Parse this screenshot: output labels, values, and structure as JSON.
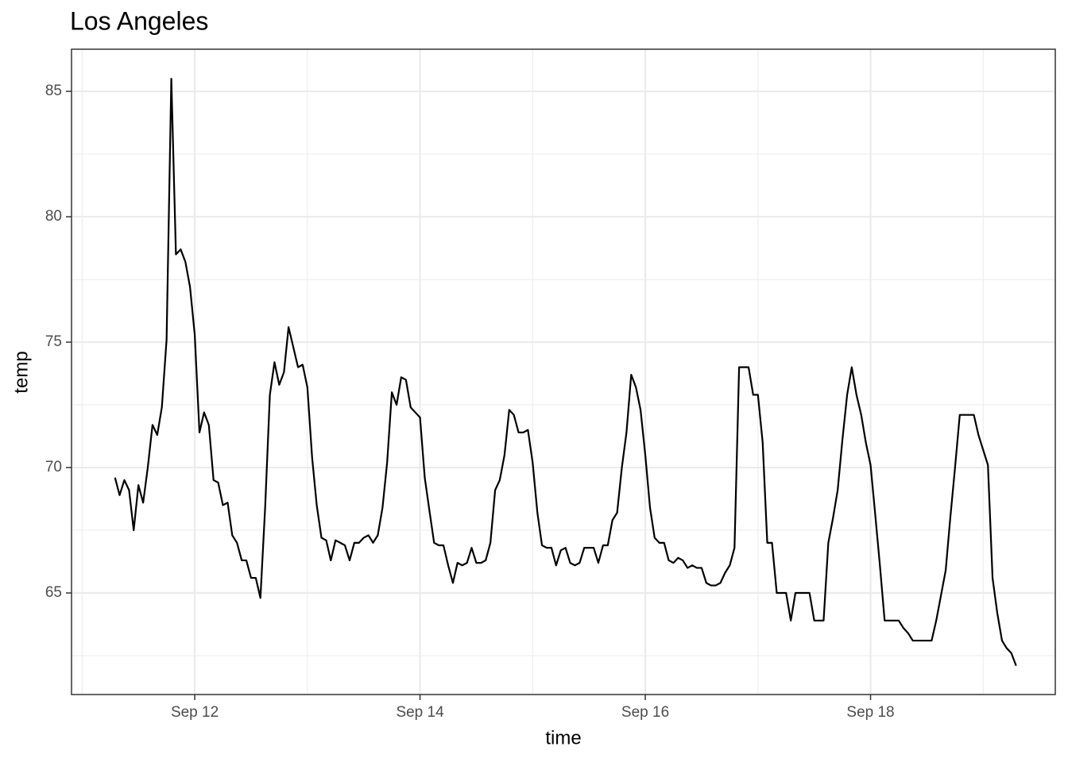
{
  "chart_data": {
    "type": "line",
    "title": "Los Angeles",
    "xlabel": "time",
    "ylabel": "temp",
    "color": "#000000",
    "grid": true,
    "xlim": [
      10.906,
      19.64
    ],
    "ylim": [
      60.95,
      86.68
    ],
    "xticks": [
      {
        "value": 12,
        "label": "Sep 12"
      },
      {
        "value": 14,
        "label": "Sep 14"
      },
      {
        "value": 16,
        "label": "Sep 16"
      },
      {
        "value": 18,
        "label": "Sep 18"
      }
    ],
    "yticks": [
      65,
      70,
      75,
      80,
      85
    ],
    "xminor": [
      11,
      13,
      15,
      17,
      19
    ],
    "yminor": [
      62.5,
      67.5,
      72.5,
      77.5,
      82.5
    ],
    "x": [
      11.292,
      11.333,
      11.375,
      11.417,
      11.458,
      11.5,
      11.542,
      11.583,
      11.625,
      11.667,
      11.708,
      11.75,
      11.792,
      11.833,
      11.875,
      11.917,
      11.958,
      12,
      12.042,
      12.083,
      12.125,
      12.167,
      12.208,
      12.25,
      12.292,
      12.333,
      12.375,
      12.417,
      12.458,
      12.5,
      12.542,
      12.583,
      12.625,
      12.667,
      12.708,
      12.75,
      12.792,
      12.833,
      12.875,
      12.917,
      12.958,
      13,
      13.042,
      13.083,
      13.125,
      13.167,
      13.208,
      13.25,
      13.292,
      13.333,
      13.375,
      13.417,
      13.458,
      13.5,
      13.542,
      13.583,
      13.625,
      13.667,
      13.708,
      13.75,
      13.792,
      13.833,
      13.875,
      13.917,
      13.958,
      14,
      14.042,
      14.083,
      14.125,
      14.167,
      14.208,
      14.25,
      14.292,
      14.333,
      14.375,
      14.417,
      14.458,
      14.5,
      14.542,
      14.583,
      14.625,
      14.667,
      14.708,
      14.75,
      14.792,
      14.833,
      14.875,
      14.917,
      14.958,
      15,
      15.042,
      15.083,
      15.125,
      15.167,
      15.208,
      15.25,
      15.292,
      15.333,
      15.375,
      15.417,
      15.458,
      15.5,
      15.542,
      15.583,
      15.625,
      15.667,
      15.708,
      15.75,
      15.792,
      15.833,
      15.875,
      15.917,
      15.958,
      16,
      16.042,
      16.083,
      16.125,
      16.167,
      16.208,
      16.25,
      16.292,
      16.333,
      16.375,
      16.417,
      16.458,
      16.5,
      16.542,
      16.583,
      16.625,
      16.667,
      16.708,
      16.75,
      16.792,
      16.833,
      16.875,
      16.917,
      16.958,
      17,
      17.042,
      17.083,
      17.125,
      17.167,
      17.208,
      17.25,
      17.292,
      17.333,
      17.375,
      17.417,
      17.458,
      17.5,
      17.542,
      17.583,
      17.625,
      17.667,
      17.708,
      17.75,
      17.792,
      17.833,
      17.875,
      17.917,
      17.958,
      18,
      18.042,
      18.083,
      18.125,
      18.167,
      18.208,
      18.25,
      18.292,
      18.333,
      18.375,
      18.417,
      18.458,
      18.5,
      18.542,
      18.583,
      18.625,
      18.667,
      18.708,
      18.75,
      18.792,
      18.833,
      18.875,
      18.917,
      18.958,
      19,
      19.042,
      19.083,
      19.125,
      19.167,
      19.208,
      19.25,
      19.292
    ],
    "values": [
      69.6,
      68.9,
      69.5,
      69.1,
      67.5,
      69.3,
      68.6,
      70.0,
      71.7,
      71.3,
      72.4,
      75.1,
      85.5,
      78.5,
      78.7,
      78.2,
      77.2,
      75.3,
      71.4,
      72.2,
      71.7,
      69.5,
      69.4,
      68.5,
      68.6,
      67.3,
      67.0,
      66.3,
      66.3,
      65.6,
      65.6,
      64.8,
      68.4,
      72.9,
      74.2,
      73.3,
      73.8,
      75.6,
      74.8,
      74.0,
      74.1,
      73.2,
      70.4,
      68.5,
      67.2,
      67.1,
      66.3,
      67.1,
      67.0,
      66.9,
      66.3,
      67.0,
      67.0,
      67.2,
      67.3,
      67.0,
      67.3,
      68.4,
      70.2,
      73.0,
      72.5,
      73.6,
      73.5,
      72.4,
      72.2,
      72.0,
      69.6,
      68.3,
      67.0,
      66.9,
      66.9,
      66.1,
      65.4,
      66.2,
      66.1,
      66.2,
      66.8,
      66.2,
      66.2,
      66.3,
      67.0,
      69.1,
      69.5,
      70.5,
      72.3,
      72.1,
      71.4,
      71.4,
      71.5,
      70.2,
      68.2,
      66.9,
      66.8,
      66.8,
      66.1,
      66.7,
      66.8,
      66.2,
      66.1,
      66.2,
      66.8,
      66.8,
      66.8,
      66.2,
      66.9,
      66.9,
      67.9,
      68.2,
      70.0,
      71.4,
      73.7,
      73.2,
      72.3,
      70.5,
      68.4,
      67.2,
      67.0,
      67.0,
      66.3,
      66.2,
      66.4,
      66.3,
      66.0,
      66.1,
      66.0,
      66.0,
      65.4,
      65.3,
      65.3,
      65.4,
      65.8,
      66.1,
      66.8,
      74.0,
      74.0,
      74.0,
      72.9,
      72.9,
      71.0,
      67.0,
      67.0,
      65.0,
      65.0,
      65.0,
      63.9,
      65.0,
      65.0,
      65.0,
      65.0,
      63.9,
      63.9,
      63.9,
      67.0,
      68.0,
      69.1,
      71.1,
      72.9,
      74.0,
      72.9,
      72.1,
      71.0,
      70.1,
      68.1,
      66.1,
      63.9,
      63.9,
      63.9,
      63.9,
      63.6,
      63.4,
      63.1,
      63.1,
      63.1,
      63.1,
      63.1,
      63.9,
      64.9,
      65.9,
      68.0,
      70.0,
      72.1,
      72.1,
      72.1,
      72.1,
      71.3,
      70.7,
      70.1,
      65.6,
      64.2,
      63.1,
      62.8,
      62.6,
      62.1
    ]
  }
}
